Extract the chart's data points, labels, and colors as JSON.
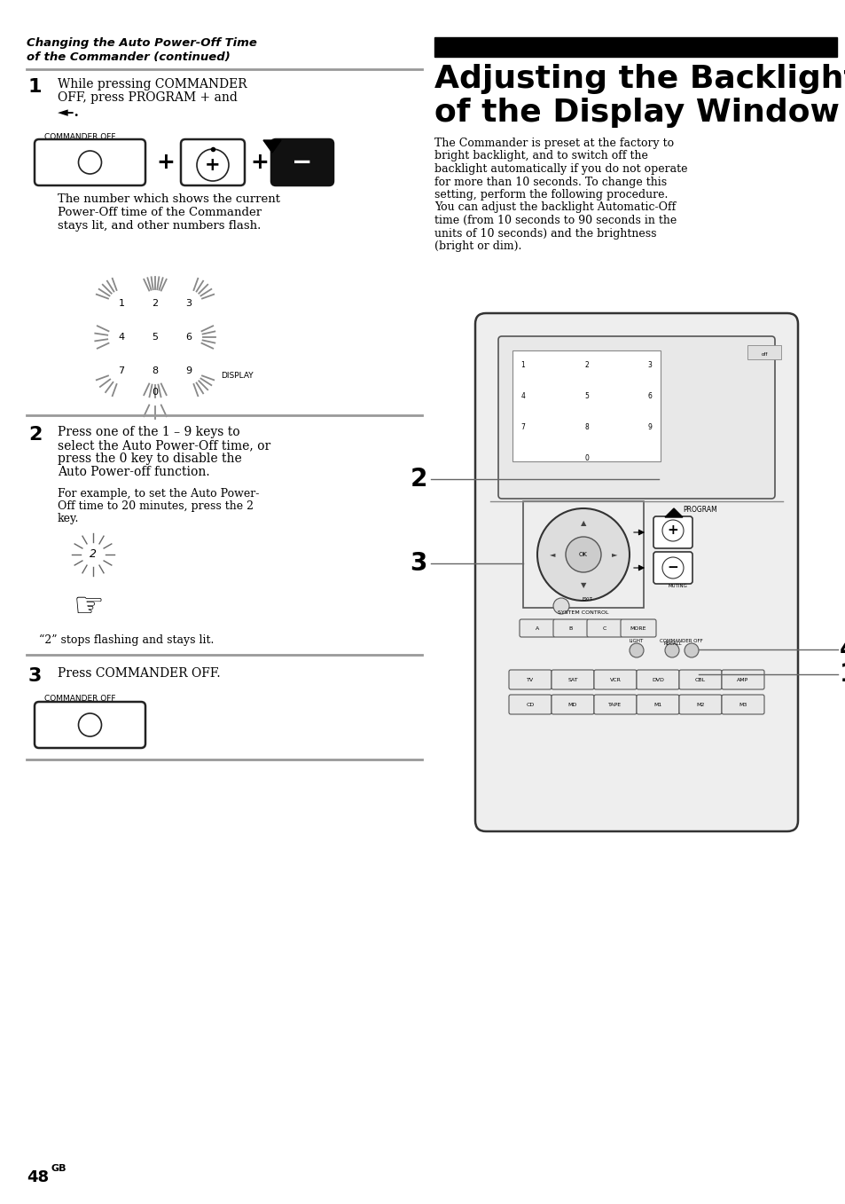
{
  "page_bg": "#ffffff",
  "left_title_line1": "Changing the Auto Power-Off Time",
  "left_title_line2": "of the Commander (continued)",
  "right_title_line1": "Adjusting the Backlight",
  "right_title_line2": "of the Display Window",
  "right_body": "The Commander is preset at the factory to\nbright backlight, and to switch off the\nbacklight automatically if you do not operate\nfor more than 10 seconds. To change this\nsetting, perform the following procedure.\nYou can adjust the backlight Automatic-Off\ntime (from 10 seconds to 90 seconds in the\nunits of 10 seconds) and the brightness\n(bright or dim).",
  "step1_text_line1": "While pressing COMMANDER",
  "step1_text_line2": "OFF, press PROGRAM + and",
  "step1_text_line3": "◄–.",
  "commander_off_label": "COMMANDER OFF",
  "program_label": "PROGRAM",
  "display_label": "DISPLAY",
  "body_text": "The number which shows the current\nPower-Off time of the Commander\nstays lit, and other numbers flash.",
  "step2_text_line1": "Press one of the 1 – 9 keys to",
  "step2_text_line2": "select the Auto Power-Off time, or",
  "step2_text_line3": "press the 0 key to disable the",
  "step2_text_line4": "Auto Power-off function.",
  "step2_sub_line1": "For example, to set the Auto Power-",
  "step2_sub_line2": "Off time to 20 minutes, press the 2",
  "step2_sub_line3": "key.",
  "step2_caption": "“2” stops flashing and stays lit.",
  "step3_text": "Press COMMANDER OFF.",
  "footer_number": "48",
  "footer_super": "GB"
}
